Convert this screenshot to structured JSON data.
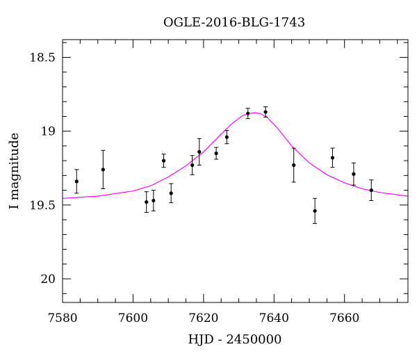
{
  "chart_data": {
    "type": "scatter",
    "title": "OGLE-2016-BLG-1743",
    "xlabel": "HJD - 2450000",
    "ylabel": "I magnitude",
    "xlim": [
      7580,
      7678
    ],
    "ylim": [
      20.16,
      18.38
    ],
    "y_inverted": true,
    "grid": false,
    "legend": "none",
    "x_ticks": [
      7580,
      7600,
      7620,
      7640,
      7660
    ],
    "x_tick_labels": [
      "7580",
      "7600",
      "7620",
      "7640",
      "7660"
    ],
    "y_ticks": [
      18.5,
      19,
      19.5,
      20
    ],
    "y_tick_labels": [
      "18.5",
      "19",
      "19.5",
      "20"
    ],
    "points": [
      {
        "x": 7584.0,
        "y": 19.34,
        "err": 0.08
      },
      {
        "x": 7591.5,
        "y": 19.26,
        "err": 0.13
      },
      {
        "x": 7603.8,
        "y": 19.48,
        "err": 0.07
      },
      {
        "x": 7605.8,
        "y": 19.47,
        "err": 0.07
      },
      {
        "x": 7608.7,
        "y": 19.2,
        "err": 0.045
      },
      {
        "x": 7610.8,
        "y": 19.42,
        "err": 0.065
      },
      {
        "x": 7616.8,
        "y": 19.23,
        "err": 0.065
      },
      {
        "x": 7618.8,
        "y": 19.14,
        "err": 0.09
      },
      {
        "x": 7623.6,
        "y": 19.15,
        "err": 0.04
      },
      {
        "x": 7626.6,
        "y": 19.04,
        "err": 0.045
      },
      {
        "x": 7632.6,
        "y": 18.88,
        "err": 0.035
      },
      {
        "x": 7637.6,
        "y": 18.87,
        "err": 0.035
      },
      {
        "x": 7645.6,
        "y": 19.23,
        "err": 0.115
      },
      {
        "x": 7651.6,
        "y": 19.54,
        "err": 0.085
      },
      {
        "x": 7656.6,
        "y": 19.18,
        "err": 0.065
      },
      {
        "x": 7662.6,
        "y": 19.29,
        "err": 0.075
      },
      {
        "x": 7667.6,
        "y": 19.4,
        "err": 0.07
      }
    ],
    "model": {
      "name": "",
      "color": "#ff00ff",
      "x": [
        7580,
        7590,
        7600,
        7605,
        7610,
        7615,
        7620,
        7625,
        7628,
        7631,
        7633,
        7634.5,
        7636,
        7638,
        7641,
        7645,
        7650,
        7655,
        7660,
        7665,
        7670,
        7678
      ],
      "y": [
        19.455,
        19.44,
        19.405,
        19.37,
        19.31,
        19.235,
        19.14,
        19.02,
        18.95,
        18.895,
        18.88,
        18.875,
        18.88,
        18.905,
        18.98,
        19.1,
        19.215,
        19.295,
        19.35,
        19.39,
        19.415,
        19.44
      ]
    },
    "colors": {
      "points": "#000000",
      "frame": "#000000"
    }
  }
}
